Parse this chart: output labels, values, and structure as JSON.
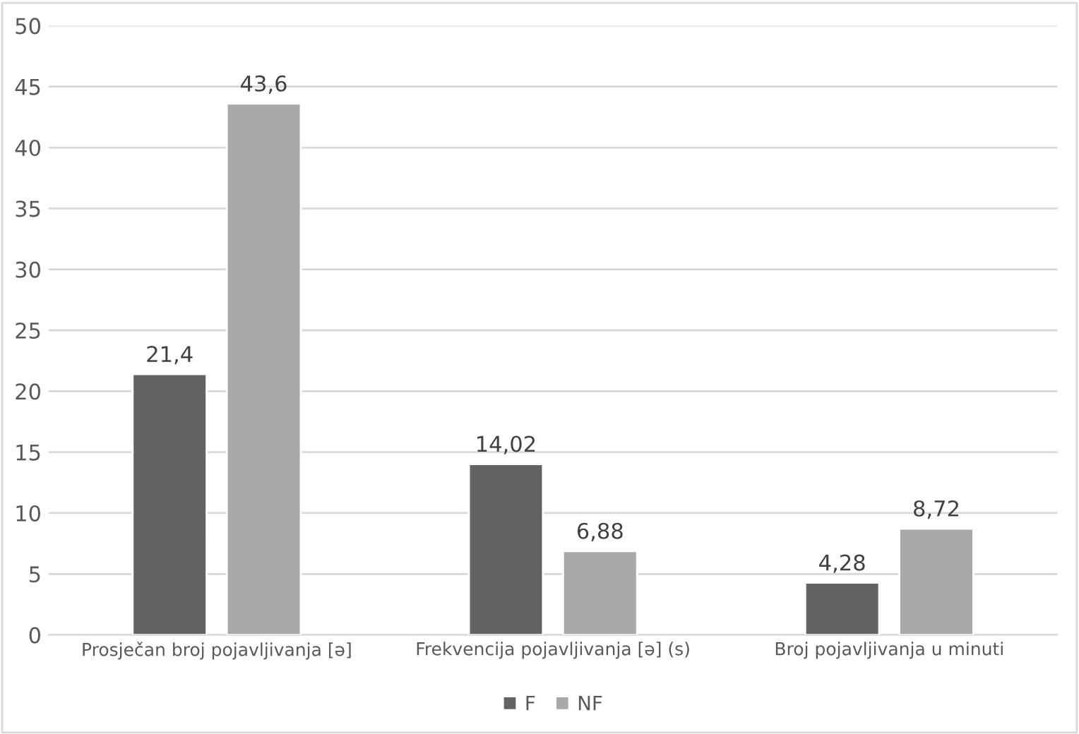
{
  "chart_data": {
    "type": "bar",
    "categories": [
      "Prosječan broj pojavljivanja [ə]",
      "Frekvencija pojavljivanja [ə] (s)",
      "Broj pojavljivanja u minuti"
    ],
    "series": [
      {
        "name": "F",
        "color": "#636363",
        "values": [
          21.4,
          14.02,
          4.28
        ],
        "value_labels": [
          "21,4",
          "14,02",
          "4,28"
        ]
      },
      {
        "name": "NF",
        "color": "#a9a9a9",
        "values": [
          43.6,
          6.88,
          8.72
        ],
        "value_labels": [
          "43,6",
          "6,88",
          "8,72"
        ]
      }
    ],
    "ylim": [
      0,
      50
    ],
    "yticks": [
      0,
      5,
      10,
      15,
      20,
      25,
      30,
      35,
      40,
      45,
      50
    ],
    "grid": "y",
    "legend": "bottom"
  }
}
